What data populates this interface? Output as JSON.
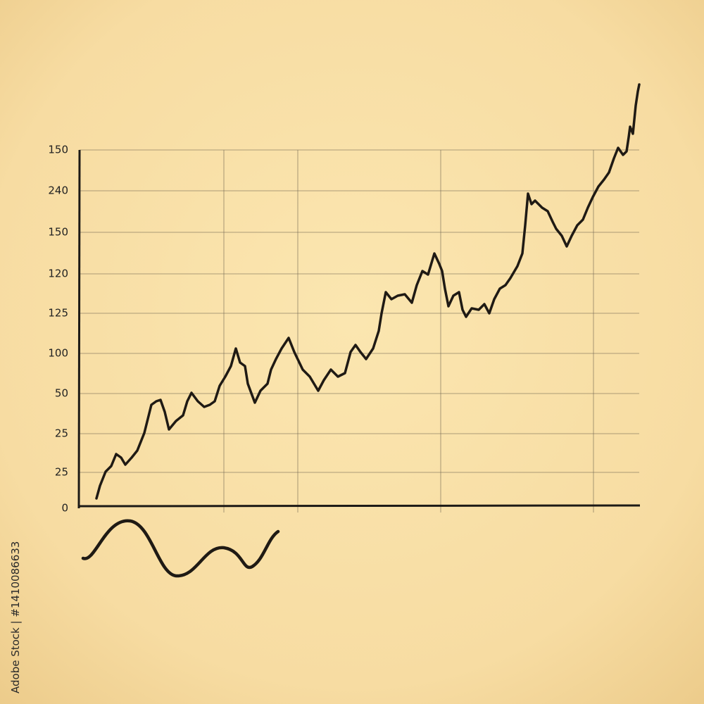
{
  "axis": {
    "y_labels": [
      "150",
      "240",
      "150",
      "120",
      "125",
      "100",
      "50",
      "25",
      "25",
      "0"
    ]
  },
  "watermark": "Adobe Stock | #1410086633"
}
